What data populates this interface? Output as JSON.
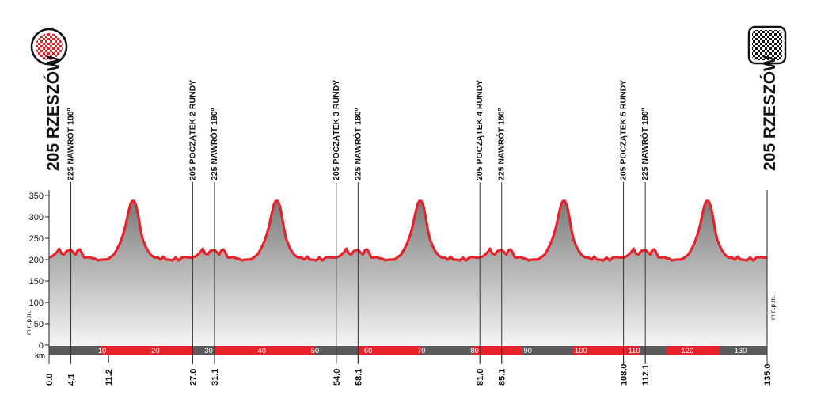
{
  "chart_data": {
    "type": "area",
    "y_axis": {
      "ticks": [
        350,
        300,
        250,
        200,
        150,
        100,
        50,
        0
      ],
      "ylim": [
        0,
        370
      ],
      "unit": "m n.p.m."
    },
    "x_axis": {
      "unit": "km",
      "xlim": [
        0,
        135
      ],
      "band_ticks": [
        10,
        20,
        30,
        40,
        50,
        60,
        70,
        80,
        90,
        100,
        110,
        120,
        130
      ]
    },
    "start": {
      "label": "205 RZESZÓW",
      "km": 0.0
    },
    "finish": {
      "label": "205 RZESZÓW",
      "km": 135.0
    },
    "waypoints": [
      {
        "km": 4.1,
        "label": "225 NAWRÓT 180º"
      },
      {
        "km": 27.0,
        "label": "205 POCZĄTEK 2 RUNDY"
      },
      {
        "km": 31.1,
        "label": "225 NAWRÓT 180º"
      },
      {
        "km": 54.0,
        "label": "205 POCZĄTEK 3 RUNDY"
      },
      {
        "km": 58.1,
        "label": "225 NAWRÓT 180º"
      },
      {
        "km": 81.0,
        "label": "205 POCZĄTEK 4 RUNDY"
      },
      {
        "km": 85.1,
        "label": "225 NAWRÓT 180º"
      },
      {
        "km": 108.0,
        "label": "205 POCZĄTEK 5 RUNDY"
      },
      {
        "km": 112.1,
        "label": "225 NAWRÓT 180º"
      }
    ],
    "km_markers": [
      "0.0",
      "4.1",
      "11.2",
      "27.0",
      "31.1",
      "54.0",
      "58.1",
      "81.0",
      "85.1",
      "108.0",
      "112.1",
      "135.0"
    ],
    "lap_profile": {
      "lap_length_km": 27,
      "laps": 5,
      "points": [
        [
          0,
          205
        ],
        [
          0.6,
          208
        ],
        [
          1.0,
          212
        ],
        [
          1.5,
          218
        ],
        [
          1.9,
          226
        ],
        [
          2.3,
          215
        ],
        [
          2.8,
          212
        ],
        [
          3.3,
          220
        ],
        [
          3.8,
          222
        ],
        [
          4.1,
          223
        ],
        [
          4.5,
          218
        ],
        [
          5.0,
          212
        ],
        [
          5.4,
          222
        ],
        [
          5.8,
          224
        ],
        [
          6.2,
          215
        ],
        [
          6.6,
          205
        ],
        [
          7.0,
          205
        ],
        [
          7.6,
          206
        ],
        [
          8.2,
          203
        ],
        [
          8.7,
          202
        ],
        [
          9.2,
          198
        ],
        [
          9.8,
          200
        ],
        [
          10.4,
          200
        ],
        [
          11.0,
          201
        ],
        [
          11.6,
          206
        ],
        [
          12.2,
          212
        ],
        [
          12.8,
          225
        ],
        [
          13.4,
          240
        ],
        [
          13.9,
          258
        ],
        [
          14.4,
          280
        ],
        [
          14.9,
          310
        ],
        [
          15.3,
          330
        ],
        [
          15.6,
          337
        ],
        [
          16.0,
          337
        ],
        [
          16.4,
          325
        ],
        [
          16.8,
          300
        ],
        [
          17.2,
          270
        ],
        [
          17.6,
          248
        ],
        [
          18.1,
          232
        ],
        [
          18.6,
          220
        ],
        [
          19.2,
          210
        ],
        [
          19.8,
          205
        ],
        [
          20.4,
          205
        ],
        [
          21.0,
          200
        ],
        [
          21.5,
          207
        ],
        [
          22.0,
          200
        ],
        [
          22.6,
          200
        ],
        [
          23.2,
          198
        ],
        [
          23.8,
          205
        ],
        [
          24.4,
          198
        ],
        [
          25.0,
          205
        ],
        [
          25.6,
          206
        ],
        [
          26.3,
          205
        ],
        [
          27.0,
          205
        ]
      ]
    }
  }
}
